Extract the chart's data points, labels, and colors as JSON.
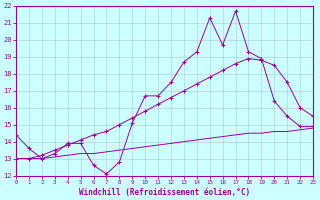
{
  "xlabel": "Windchill (Refroidissement éolien,°C)",
  "xlim": [
    0,
    23
  ],
  "ylim": [
    12,
    22
  ],
  "xticks": [
    0,
    1,
    2,
    3,
    4,
    5,
    6,
    7,
    8,
    9,
    10,
    11,
    12,
    13,
    14,
    15,
    16,
    17,
    18,
    19,
    20,
    21,
    22,
    23
  ],
  "yticks": [
    12,
    13,
    14,
    15,
    16,
    17,
    18,
    19,
    20,
    21,
    22
  ],
  "line_color": "#990099",
  "background_color": "#ccffff",
  "grid_color": "#b0c8c8",
  "line1_x": [
    0,
    1,
    2,
    3,
    4,
    5,
    6,
    7,
    8,
    9,
    10,
    11,
    12,
    13,
    14,
    15,
    16,
    17,
    18,
    19,
    20,
    21,
    22,
    23
  ],
  "line1_y": [
    14.4,
    13.6,
    13.0,
    13.3,
    13.9,
    13.9,
    12.6,
    12.1,
    12.8,
    15.1,
    16.7,
    16.7,
    17.5,
    18.7,
    19.3,
    21.3,
    19.7,
    21.7,
    19.3,
    18.9,
    16.4,
    15.5,
    14.9,
    14.9
  ],
  "line2_x": [
    0,
    1,
    2,
    3,
    4,
    5,
    6,
    7,
    8,
    9,
    10,
    11,
    12,
    13,
    14,
    15,
    16,
    17,
    18,
    19,
    20,
    21,
    22,
    23
  ],
  "line2_y": [
    13.0,
    13.0,
    13.2,
    13.5,
    13.8,
    14.1,
    14.4,
    14.6,
    15.0,
    15.4,
    15.8,
    16.2,
    16.6,
    17.0,
    17.4,
    17.8,
    18.2,
    18.6,
    18.9,
    18.8,
    18.5,
    17.5,
    16.0,
    15.5
  ],
  "line3_x": [
    0,
    1,
    2,
    3,
    4,
    5,
    6,
    7,
    8,
    9,
    10,
    11,
    12,
    13,
    14,
    15,
    16,
    17,
    18,
    19,
    20,
    21,
    22,
    23
  ],
  "line3_y": [
    13.0,
    13.0,
    13.0,
    13.1,
    13.2,
    13.3,
    13.3,
    13.4,
    13.5,
    13.6,
    13.7,
    13.8,
    13.9,
    14.0,
    14.1,
    14.2,
    14.3,
    14.4,
    14.5,
    14.5,
    14.6,
    14.6,
    14.7,
    14.8
  ]
}
